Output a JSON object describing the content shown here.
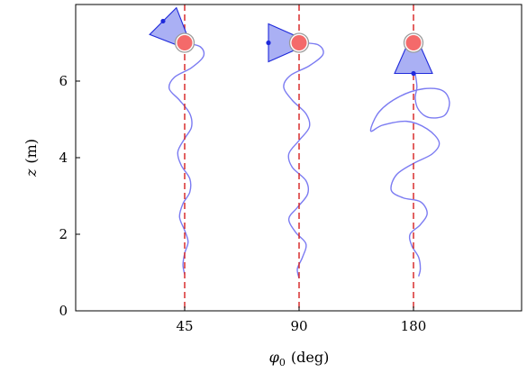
{
  "chart_data": {
    "type": "line",
    "xlabel_symbol": "φ",
    "xlabel_sub": "0",
    "xlabel_unit": "(deg)",
    "ylabel_symbol": "z",
    "ylabel_unit": "(m)",
    "categories": [
      "45",
      "90",
      "180"
    ],
    "yticks": [
      0,
      2,
      4,
      6
    ],
    "ylim": [
      0,
      8
    ],
    "grid": false,
    "colors": {
      "trajectory": "#7b7bf2",
      "reference_line": "#d62020",
      "marker_fill": "#f46a6a",
      "marker_ring": "#9a9a9a",
      "sensor_fill": "#aab0f4",
      "sensor_stroke": "#1f2adb"
    },
    "series": [
      {
        "category": "45",
        "sensor_heading": "upper-left",
        "top_marker_z": 7.0,
        "trajectory": [
          [
            0.0,
            7.0
          ],
          [
            0.45,
            6.9
          ],
          [
            0.55,
            6.65
          ],
          [
            0.2,
            6.35
          ],
          [
            -0.3,
            6.1
          ],
          [
            -0.45,
            5.8
          ],
          [
            -0.15,
            5.5
          ],
          [
            0.15,
            5.15
          ],
          [
            0.2,
            4.8
          ],
          [
            0.0,
            4.5
          ],
          [
            -0.2,
            4.15
          ],
          [
            -0.1,
            3.8
          ],
          [
            0.15,
            3.45
          ],
          [
            0.15,
            3.1
          ],
          [
            -0.05,
            2.8
          ],
          [
            -0.15,
            2.45
          ],
          [
            0.0,
            2.1
          ],
          [
            0.1,
            1.8
          ],
          [
            0.0,
            1.5
          ],
          [
            -0.05,
            1.2
          ],
          [
            0.0,
            0.95
          ]
        ]
      },
      {
        "category": "90",
        "sensor_heading": "left",
        "top_marker_z": 7.0,
        "trajectory": [
          [
            0.0,
            7.0
          ],
          [
            0.55,
            6.95
          ],
          [
            0.7,
            6.7
          ],
          [
            0.3,
            6.4
          ],
          [
            -0.25,
            6.15
          ],
          [
            -0.45,
            5.85
          ],
          [
            -0.2,
            5.5
          ],
          [
            0.2,
            5.15
          ],
          [
            0.3,
            4.8
          ],
          [
            0.0,
            4.45
          ],
          [
            -0.3,
            4.1
          ],
          [
            -0.2,
            3.75
          ],
          [
            0.2,
            3.4
          ],
          [
            0.25,
            3.05
          ],
          [
            -0.05,
            2.7
          ],
          [
            -0.3,
            2.4
          ],
          [
            -0.1,
            2.05
          ],
          [
            0.2,
            1.75
          ],
          [
            0.1,
            1.4
          ],
          [
            -0.05,
            1.1
          ],
          [
            0.0,
            0.85
          ]
        ]
      },
      {
        "category": "180",
        "sensor_heading": "down",
        "top_marker_z": 7.0,
        "trajectory": [
          [
            0.0,
            7.0
          ],
          [
            0.0,
            6.6
          ],
          [
            0.05,
            6.2
          ],
          [
            0.1,
            5.85
          ],
          [
            0.05,
            5.55
          ],
          [
            0.15,
            5.25
          ],
          [
            0.45,
            5.05
          ],
          [
            0.9,
            5.1
          ],
          [
            1.05,
            5.45
          ],
          [
            0.85,
            5.75
          ],
          [
            0.3,
            5.8
          ],
          [
            -0.4,
            5.6
          ],
          [
            -1.0,
            5.2
          ],
          [
            -1.25,
            4.7
          ],
          [
            -0.9,
            4.85
          ],
          [
            -0.2,
            4.95
          ],
          [
            0.4,
            4.75
          ],
          [
            0.75,
            4.4
          ],
          [
            0.55,
            4.1
          ],
          [
            0.0,
            3.85
          ],
          [
            -0.5,
            3.55
          ],
          [
            -0.65,
            3.15
          ],
          [
            -0.3,
            2.95
          ],
          [
            0.2,
            2.85
          ],
          [
            0.4,
            2.55
          ],
          [
            0.2,
            2.25
          ],
          [
            -0.1,
            2.0
          ],
          [
            -0.05,
            1.7
          ],
          [
            0.15,
            1.4
          ],
          [
            0.2,
            1.1
          ],
          [
            0.15,
            0.9
          ]
        ]
      }
    ]
  }
}
